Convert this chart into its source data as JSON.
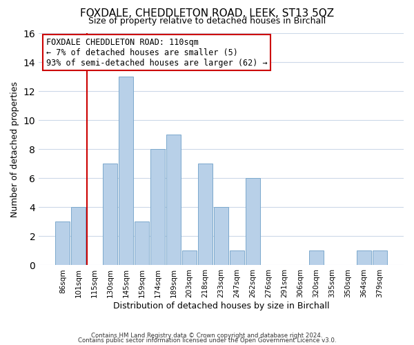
{
  "title": "FOXDALE, CHEDDLETON ROAD, LEEK, ST13 5QZ",
  "subtitle": "Size of property relative to detached houses in Birchall",
  "xlabel": "Distribution of detached houses by size in Birchall",
  "ylabel": "Number of detached properties",
  "bin_labels": [
    "86sqm",
    "101sqm",
    "115sqm",
    "130sqm",
    "145sqm",
    "159sqm",
    "174sqm",
    "189sqm",
    "203sqm",
    "218sqm",
    "233sqm",
    "247sqm",
    "262sqm",
    "276sqm",
    "291sqm",
    "306sqm",
    "320sqm",
    "335sqm",
    "350sqm",
    "364sqm",
    "379sqm"
  ],
  "bar_values": [
    3,
    4,
    0,
    7,
    13,
    3,
    8,
    9,
    1,
    7,
    4,
    1,
    6,
    0,
    0,
    0,
    1,
    0,
    0,
    1,
    1
  ],
  "highlight_line_index": 2,
  "highlight_line_color": "#cc0000",
  "bar_color": "#b8d0e8",
  "bar_edge_color": "#7aa8cc",
  "annotation_box_text": "FOXDALE CHEDDLETON ROAD: 110sqm\n← 7% of detached houses are smaller (5)\n93% of semi-detached houses are larger (62) →",
  "ylim": [
    0,
    16
  ],
  "yticks": [
    0,
    2,
    4,
    6,
    8,
    10,
    12,
    14,
    16
  ],
  "footer_line1": "Contains HM Land Registry data © Crown copyright and database right 2024.",
  "footer_line2": "Contains public sector information licensed under the Open Government Licence v3.0.",
  "background_color": "#ffffff",
  "grid_color": "#ccd8e8",
  "title_fontsize": 11,
  "subtitle_fontsize": 9,
  "ylabel_fontsize": 9,
  "xlabel_fontsize": 9,
  "tick_fontsize": 7.5,
  "annotation_fontsize": 8.5
}
